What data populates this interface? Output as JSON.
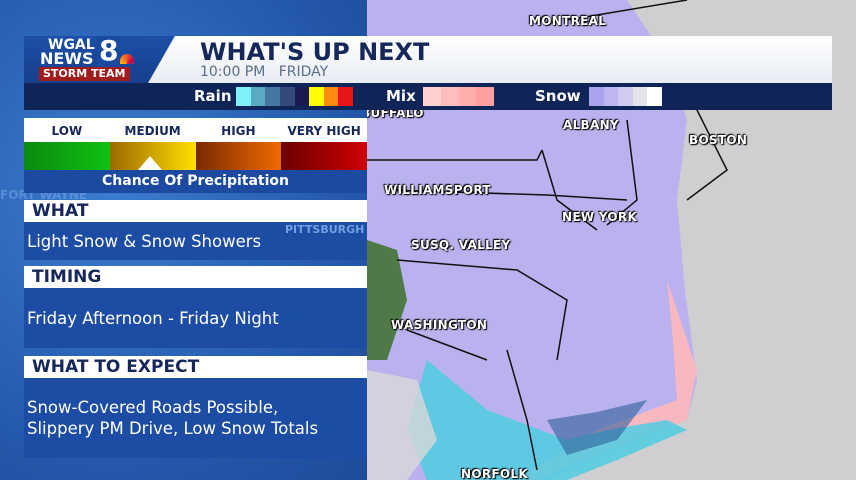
{
  "brand": {
    "station": "WGAL",
    "news": "NEWS",
    "channel": "8",
    "team": "STORM TEAM"
  },
  "header": {
    "title": "WHAT'S UP NEXT",
    "time": "10:00 PM",
    "day": "FRIDAY"
  },
  "legend": {
    "rain": {
      "label": "Rain",
      "colors": [
        "#7ef0fa",
        "#5aaac4",
        "#4677a0",
        "#344a78",
        "#1a1a52",
        "#ffff00",
        "#ff8a10",
        "#e8141a"
      ]
    },
    "mix": {
      "label": "Mix",
      "colors": [
        "#ffd0d0",
        "#ffbdbd",
        "#ffadad",
        "#ff9e9e"
      ]
    },
    "snow": {
      "label": "Snow",
      "colors": [
        "#aaa2ec",
        "#bdb6ef",
        "#d0ccf1",
        "#e4e4ea",
        "#ffffff"
      ]
    }
  },
  "precip_scale": {
    "levels": [
      "LOW",
      "MEDIUM",
      "HIGH",
      "VERY HIGH"
    ],
    "selected": "MEDIUM",
    "caption": "Chance Of Precipitation"
  },
  "what": {
    "heading": "WHAT",
    "text": "Light Snow & Snow Showers"
  },
  "timing": {
    "heading": "TIMING",
    "text": "Friday Afternoon - Friday Night"
  },
  "expect": {
    "heading": "WHAT TO EXPECT",
    "line1": "Snow-Covered Roads Possible,",
    "line2": "Slippery PM Drive, Low Snow Totals"
  },
  "map": {
    "cities": [
      "MONTREAL",
      "BUFFALO",
      "ALBANY",
      "BOSTON",
      "WILLIAMSPORT",
      "NEW YORK",
      "SUSQ. VALLEY",
      "WASHINGTON",
      "NORFOLK"
    ],
    "background_labels": [
      "FORT WAYNE",
      "PITTSBURGH"
    ]
  }
}
